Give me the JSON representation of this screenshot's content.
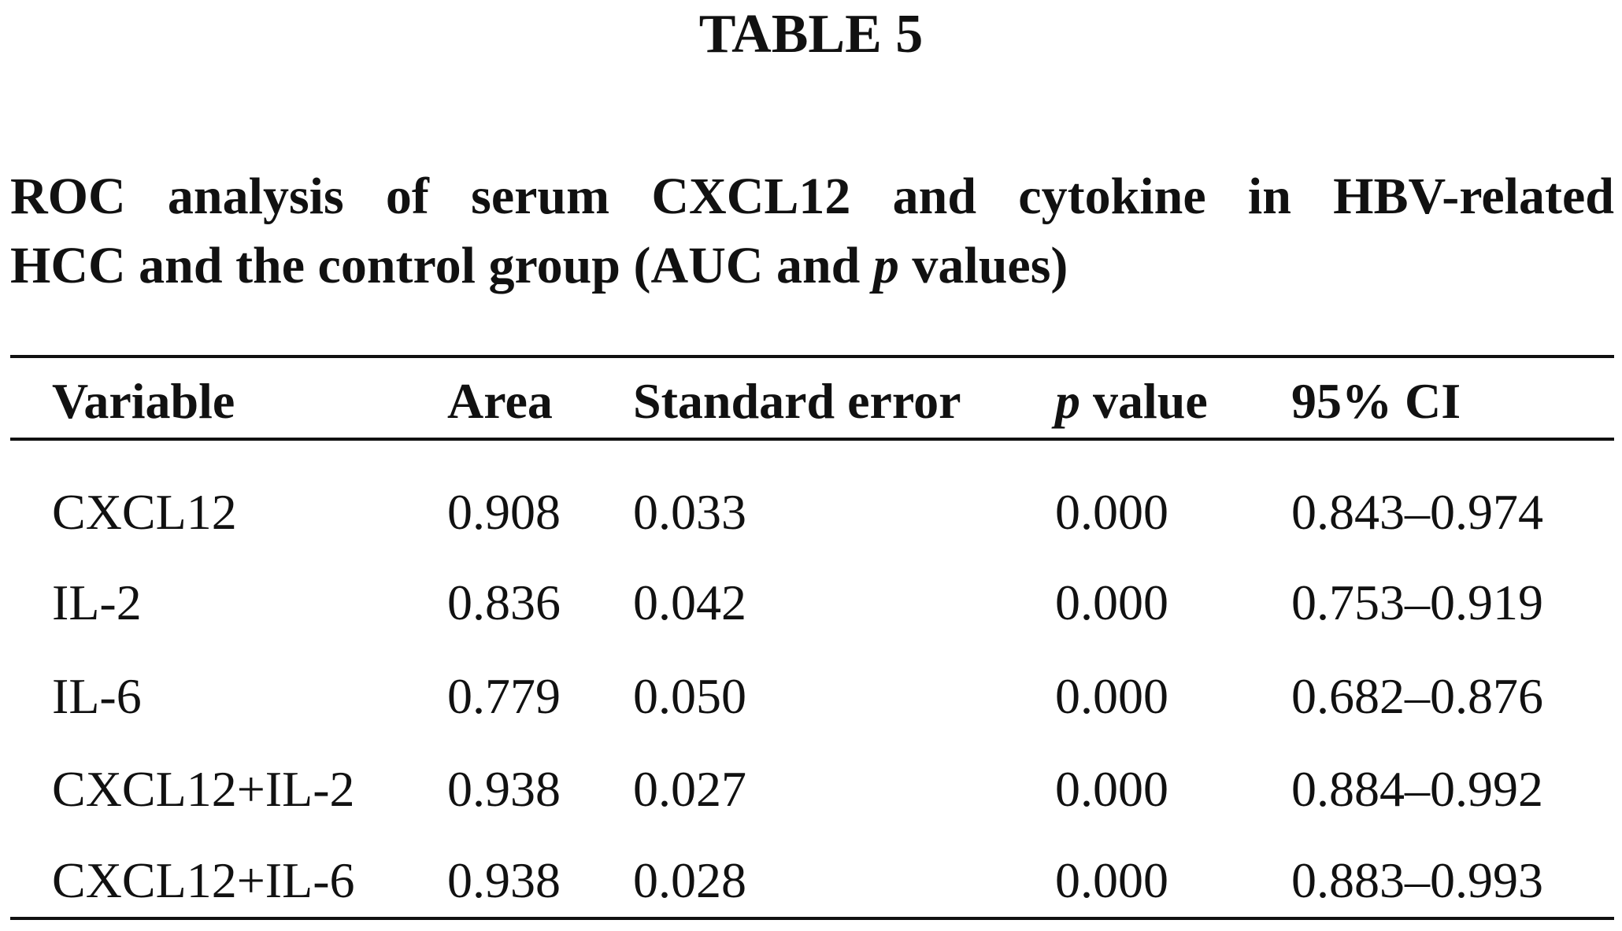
{
  "header": {
    "title": "TABLE 5"
  },
  "caption": {
    "line1": "ROC analysis of serum CXCL12 and cytokine in HBV-related",
    "line2": [
      "HCC and the control group (AUC and",
      "p",
      "values)"
    ]
  },
  "table": {
    "columns": [
      "Variable",
      "Area",
      "Standard error",
      "p value",
      "95% CI"
    ],
    "rows": [
      [
        "CXCL12",
        "0.908",
        "0.033",
        "0.000",
        "0.843–0.974"
      ],
      [
        "IL-2",
        "0.836",
        "0.042",
        "0.000",
        "0.753–0.919"
      ],
      [
        "IL-6",
        "0.779",
        "0.050",
        "0.000",
        "0.682–0.876"
      ],
      [
        "CXCL12+IL-2",
        "0.938",
        "0.027",
        "0.000",
        "0.884–0.992"
      ],
      [
        "CXCL12+IL-6",
        "0.938",
        "0.028",
        "0.000",
        "0.883–0.993"
      ]
    ]
  }
}
